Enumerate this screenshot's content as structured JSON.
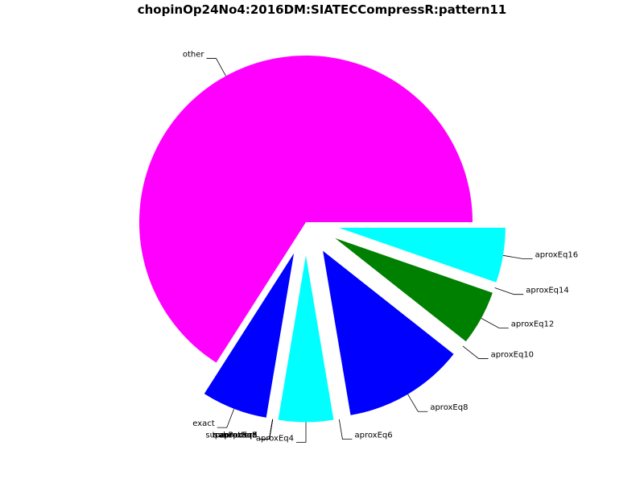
{
  "chart_data": {
    "type": "pie",
    "title": "chopinOp24No4:2016DM:SIATECCompressR:pattern11",
    "slices": [
      {
        "label": "other",
        "value": 62.0,
        "color": "#ff00ff"
      },
      {
        "label": "exact",
        "value": 6.0,
        "color": "#0000ff"
      },
      {
        "label": "aproxEq2",
        "value": 0.0,
        "color": "#00ffff"
      },
      {
        "label": "aproxEq3",
        "value": 0.0,
        "color": "#008000"
      },
      {
        "label": "aproxEq5",
        "value": 0.0,
        "color": "#0000ff"
      },
      {
        "label": "subPattern",
        "value": 0.0,
        "color": "#00ffff"
      },
      {
        "label": "superPattern",
        "value": 0.0,
        "color": "#008000"
      },
      {
        "label": "transposed",
        "value": 0.0,
        "color": "#0000ff"
      },
      {
        "label": "aproxEq4",
        "value": 5.0,
        "color": "#00ffff"
      },
      {
        "label": "aproxEq6",
        "value": 0.0,
        "color": "#008000"
      },
      {
        "label": "aproxEq8",
        "value": 11.0,
        "color": "#0000ff"
      },
      {
        "label": "aproxEq10",
        "value": 0.0,
        "color": "#00ffff"
      },
      {
        "label": "aproxEq12",
        "value": 5.0,
        "color": "#008000"
      },
      {
        "label": "aproxEq14",
        "value": 0.0,
        "color": "#0000ff"
      },
      {
        "label": "aproxEq16",
        "value": 5.0,
        "color": "#00ffff"
      }
    ]
  }
}
